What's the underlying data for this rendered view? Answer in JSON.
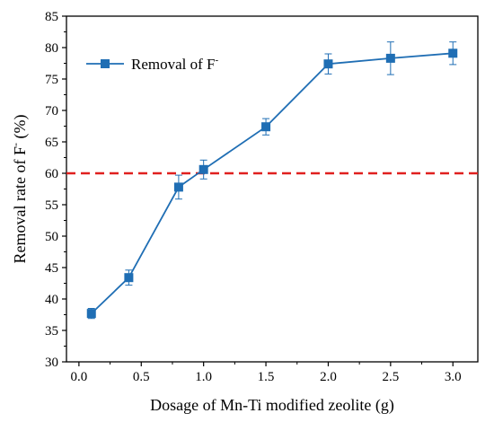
{
  "chart_data": {
    "type": "line",
    "xlabel": "Dosage of Mn-Ti modified zeolite (g)",
    "ylabel_main": "Removal rate of F",
    "ylabel_sup": "-",
    "ylabel_tail": " (%)",
    "xlim": [
      -0.1,
      3.2
    ],
    "ylim": [
      30,
      85
    ],
    "xticks": [
      0.0,
      0.5,
      1.0,
      1.5,
      2.0,
      2.5,
      3.0
    ],
    "xtick_labels": [
      "0.0",
      "0.5",
      "1.0",
      "1.5",
      "2.0",
      "2.5",
      "3.0"
    ],
    "yticks": [
      30,
      35,
      40,
      45,
      50,
      55,
      60,
      65,
      70,
      75,
      80,
      85
    ],
    "ytick_labels": [
      "30",
      "35",
      "40",
      "45",
      "50",
      "55",
      "60",
      "65",
      "70",
      "75",
      "80",
      "85"
    ],
    "series": [
      {
        "name_main": "Removal of F",
        "name_sup": "-",
        "color": "#1f6eb4",
        "x": [
          0.1,
          0.4,
          0.8,
          1.0,
          1.5,
          2.0,
          2.5,
          3.0
        ],
        "y": [
          37.7,
          43.4,
          57.8,
          60.6,
          67.4,
          77.4,
          78.3,
          79.1
        ],
        "err": [
          0.8,
          1.2,
          1.9,
          1.5,
          1.3,
          1.6,
          2.6,
          1.8
        ]
      }
    ],
    "reference_line": {
      "y": 60,
      "color": "#e0201f",
      "style": "dashed"
    },
    "legend_position": "top-left",
    "grid": false
  }
}
